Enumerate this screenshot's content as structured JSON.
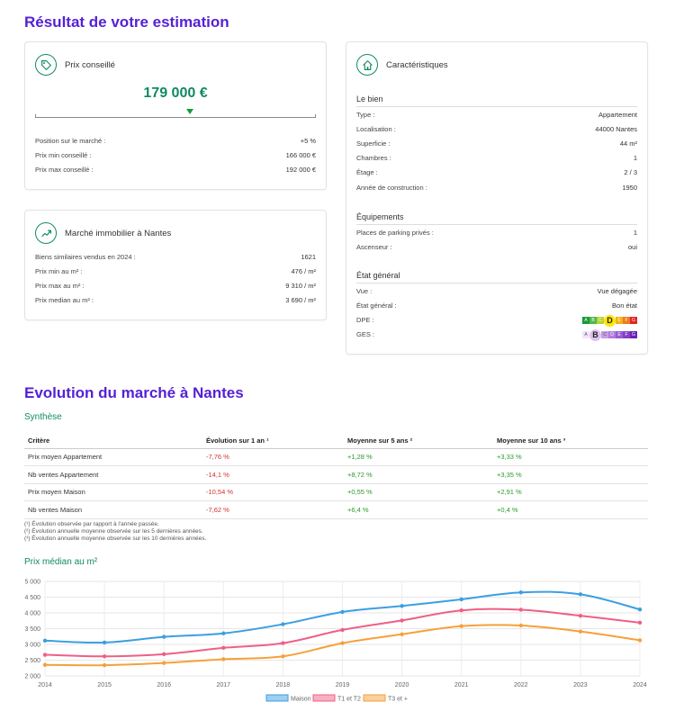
{
  "title": "Résultat de votre estimation",
  "prix": {
    "card_title": "Prix conseillé",
    "icon": "price-tag-icon",
    "price": "179 000 €",
    "rows": [
      {
        "label": "Position sur le marché :",
        "value": "+5 %"
      },
      {
        "label": "Prix min conseillé :",
        "value": "166 000 €"
      },
      {
        "label": "Prix max conseillé :",
        "value": "192 000 €"
      }
    ]
  },
  "marche": {
    "card_title": "Marché immobilier à Nantes",
    "icon": "trend-up-icon",
    "rows": [
      {
        "label": "Biens similaires vendus en 2024 :",
        "value": "1621"
      },
      {
        "label": "Prix min au m² :",
        "value": "476 / m²"
      },
      {
        "label": "Prix max au m² :",
        "value": "9 310 / m²"
      },
      {
        "label": "Prix median au m² :",
        "value": "3 690 / m²"
      }
    ]
  },
  "carac": {
    "card_title": "Caractéristiques",
    "icon": "home-icon",
    "bien_title": "Le bien",
    "bien": [
      {
        "label": "Type :",
        "value": "Appartement"
      },
      {
        "label": "Localisation :",
        "value": "44000 Nantes"
      },
      {
        "label": "Superficie :",
        "value": "44 m²"
      },
      {
        "label": "Chambres :",
        "value": "1"
      },
      {
        "label": "Étage :",
        "value": "2 / 3"
      },
      {
        "label": "Année de construction :",
        "value": "1950"
      }
    ],
    "equip_title": "Équipements",
    "equip": [
      {
        "label": "Places de parking privés :",
        "value": "1"
      },
      {
        "label": "Ascenseur :",
        "value": "oui"
      }
    ],
    "etat_title": "État général",
    "etat": [
      {
        "label": "Vue :",
        "value": "Vue dégagée"
      },
      {
        "label": "État général :",
        "value": "Bon état"
      },
      {
        "label": "DPE :",
        "value": ""
      },
      {
        "label": "GES :",
        "value": ""
      }
    ],
    "dpe": {
      "letters": [
        "A",
        "B",
        "C",
        "D",
        "E",
        "F",
        "G"
      ],
      "selected": "D",
      "colors": [
        "#1a9a3a",
        "#52b848",
        "#b5d334",
        "#ffe600",
        "#f5b21a",
        "#ef7b1f",
        "#e3251e"
      ]
    },
    "ges": {
      "letters": [
        "A",
        "B",
        "C",
        "D",
        "E",
        "F",
        "G"
      ],
      "selected": "B",
      "colors": [
        "#f3e4fb",
        "#dcc3f0",
        "#c79de6",
        "#b07cdc",
        "#9a5bd1",
        "#8540c4",
        "#6b22b5"
      ]
    }
  },
  "evolution": {
    "title": "Evolution du marché à Nantes",
    "synthese_title": "Synthèse",
    "headers": [
      "Critère",
      "Évolution sur 1 an ¹",
      "Moyenne sur 5 ans ²",
      "Moyenne sur 10 ans ³"
    ],
    "rows": [
      [
        "Prix moyen Appartement",
        "-7,76 %",
        "+1,28 %",
        "+3,33 %"
      ],
      [
        "Nb ventes Appartement",
        "-14,1 %",
        "+8,72 %",
        "+3,35 %"
      ],
      [
        "Prix moyen Maison",
        "-10,54 %",
        "+0,55 %",
        "+2,91 %"
      ],
      [
        "Nb ventes Maison",
        "-7,62 %",
        "+6,4 %",
        "+0,4 %"
      ]
    ],
    "footnotes": [
      "(¹) Évolution observée par rapport à l'année passée.",
      "(²) Évolution annuelle moyenne observée sur les 5 dernières années.",
      "(³) Évolution annuelle moyenne observée sur les 10 dernières années."
    ],
    "chart_title": "Prix médian au m²"
  },
  "chart_data": {
    "type": "line",
    "title": "Prix médian au m²",
    "x": [
      "2014",
      "2015",
      "2016",
      "2017",
      "2018",
      "2019",
      "2020",
      "2021",
      "2022",
      "2023",
      "2024"
    ],
    "ylim": [
      2000,
      5000
    ],
    "yticks": [
      "2 000",
      "2 500",
      "3 000",
      "3 500",
      "4 000",
      "4 500",
      "5 000"
    ],
    "grid": true,
    "legend": "bottom",
    "series": [
      {
        "name": "Maison",
        "color": "#3b9fe0",
        "values": [
          3120,
          3060,
          3240,
          3350,
          3640,
          4030,
          4220,
          4430,
          4650,
          4590,
          4110
        ]
      },
      {
        "name": "T1 et T2",
        "color": "#ef5f86",
        "values": [
          2670,
          2620,
          2690,
          2890,
          3040,
          3460,
          3760,
          4080,
          4100,
          3910,
          3690
        ]
      },
      {
        "name": "T3 et +",
        "color": "#f5a13a",
        "values": [
          2350,
          2340,
          2410,
          2530,
          2620,
          3040,
          3320,
          3580,
          3600,
          3410,
          3130
        ]
      }
    ]
  }
}
